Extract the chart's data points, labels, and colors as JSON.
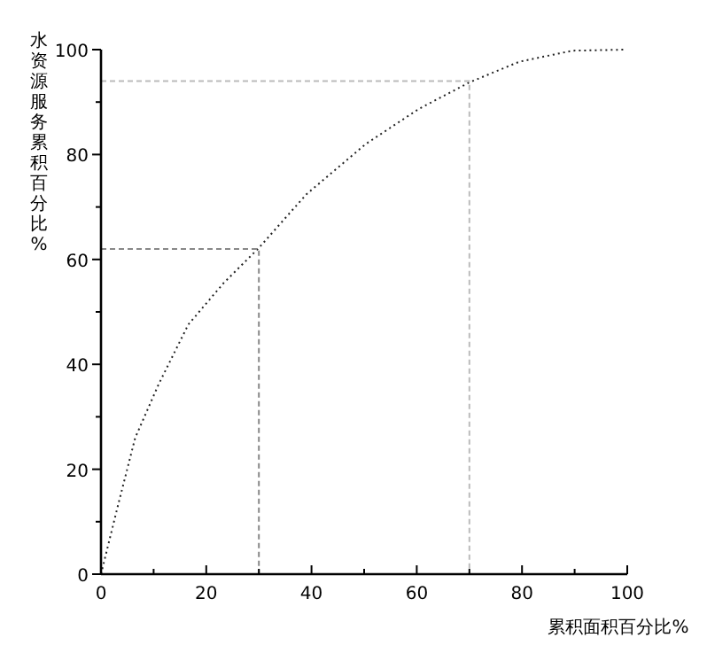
{
  "chart_data": {
    "type": "line",
    "xlabel": "累积面积百分比%",
    "ylabel": "水资源服务累积百分比%",
    "xlim": [
      0,
      100
    ],
    "ylim": [
      0,
      100
    ],
    "xticks": [
      0,
      {
        "value": 10,
        "label": null
      },
      20,
      {
        "value": 30,
        "label": null
      },
      40,
      {
        "value": 50,
        "label": null
      },
      60,
      {
        "value": 70,
        "label": null
      },
      80,
      {
        "value": 90,
        "label": null
      },
      100
    ],
    "yticks": [
      0,
      {
        "value": 10,
        "label": null
      },
      20,
      {
        "value": 30,
        "label": null
      },
      40,
      {
        "value": 50,
        "label": null
      },
      60,
      {
        "value": 70,
        "label": null
      },
      80,
      {
        "value": 90,
        "label": null
      },
      100
    ],
    "marker": "none",
    "series": [
      {
        "color": "#222222",
        "line_style": "dotted",
        "x": [
          0,
          3.1,
          6.5,
          11,
          16.6,
          23.3,
          30,
          39,
          50.3,
          60.4,
          70.1,
          79.5,
          89.6,
          99.7
        ],
        "values": [
          0,
          12.6,
          26,
          36.3,
          47.6,
          55.5,
          62.2,
          72.4,
          82,
          88.7,
          93.8,
          97.7,
          99.8,
          100
        ]
      },
      {
        "color": "#888888",
        "line_style": "dashed",
        "x": [
          0,
          30,
          30
        ],
        "values": [
          62,
          62,
          0
        ]
      },
      {
        "color": "#bbbbbb",
        "line_style": "dashed",
        "x": [
          0,
          70,
          70
        ],
        "values": [
          94,
          94,
          0
        ]
      }
    ]
  }
}
